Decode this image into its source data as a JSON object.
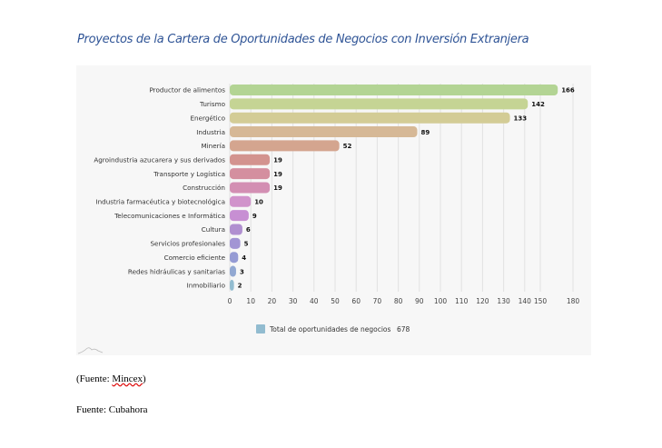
{
  "chart_data": {
    "type": "bar",
    "orientation": "horizontal",
    "title": "Proyectos de la Cartera de Oportunidades de Negocios con Inversión Extranjera",
    "categories": [
      "Productor de alimentos",
      "Turismo",
      "Energético",
      "Industria",
      "Minería",
      "Agroindustria azucarera y sus derivados",
      "Transporte y Logística",
      "Construcción",
      "Industria farmacéutica y biotecnológica",
      "Telecomunicaciones e Informática",
      "Cultura",
      "Servicios profesionales",
      "Comercio eficiente",
      "Redes hidráulicas y sanitarias",
      "Inmobiliario"
    ],
    "values": [
      166,
      142,
      133,
      89,
      52,
      19,
      19,
      19,
      10,
      9,
      6,
      5,
      4,
      3,
      2
    ],
    "colors": [
      "#b3d494",
      "#c5d494",
      "#d3cc96",
      "#d6b896",
      "#d4a58f",
      "#d3938f",
      "#d48f9f",
      "#d38fb3",
      "#d193cb",
      "#c78fd3",
      "#b08fd0",
      "#a295d4",
      "#959bd4",
      "#92a8d2",
      "#92bcd0"
    ],
    "x_ticks": [
      0,
      10,
      20,
      30,
      40,
      50,
      60,
      70,
      80,
      90,
      100,
      110,
      120,
      130,
      140,
      150,
      180
    ],
    "xlim": [
      0,
      180
    ],
    "grid": true,
    "legend": {
      "label": "Total de oportunidades de negocios",
      "value": "678",
      "color": "#92bcd0",
      "position": "bottom"
    }
  },
  "sources": {
    "first_prefix": "(Fuente: ",
    "first_name": "Mincex",
    "first_suffix": ")",
    "second": "Fuente: Cubahora"
  }
}
